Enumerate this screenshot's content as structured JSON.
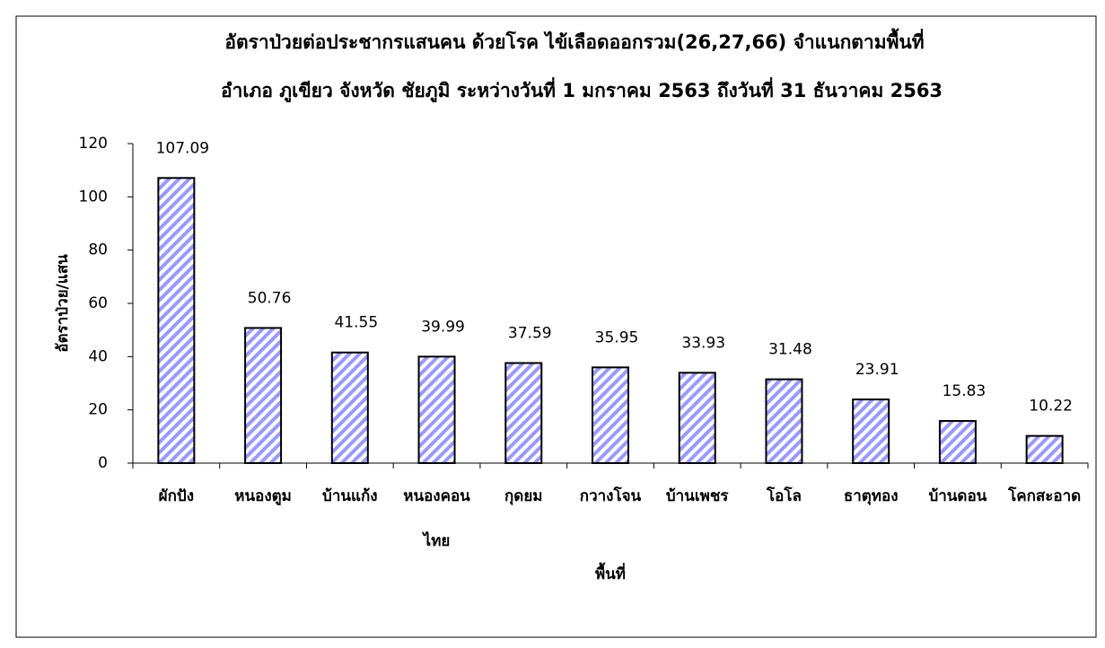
{
  "chart_data": {
    "type": "bar",
    "title": "อัตราป่วยต่อประชากรแสนคน ด้วยโรค ไข้เลือดออกรวม(26,27,66)  จำแนกตามพื้นที่",
    "subtitle": "อำเภอ  ภูเขียว จังหวัด ชัยภูมิ  ระหว่างวันที่  1 มกราคม 2563  ถึงวันที่  31 ธันวาคม 2563",
    "x_label": "พื้นที่",
    "y_label": "อัตราป่วย/แสน",
    "categories": [
      "ผักปัง",
      "หนองตูม",
      "บ้านแก้ง",
      "หนองคอน ไทย",
      "กุดยม",
      "กวางโจน",
      "บ้านเพชร",
      "โอโล",
      "ธาตุทอง",
      "บ้านดอน",
      "โคกสะอาด"
    ],
    "values": [
      107.09,
      50.76,
      41.55,
      39.99,
      37.59,
      35.95,
      33.93,
      31.48,
      23.91,
      15.83,
      10.22
    ],
    "color": "#9999ff",
    "ylim": [
      0,
      120
    ],
    "yticks": [
      0,
      20,
      40,
      60,
      80,
      100,
      120
    ],
    "grid": false
  }
}
